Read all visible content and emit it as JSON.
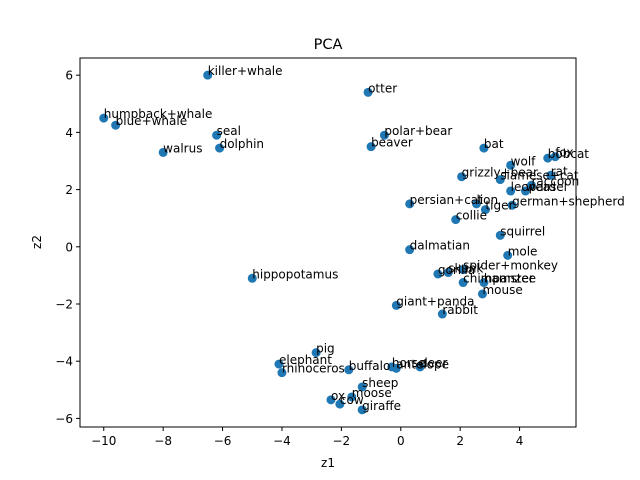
{
  "chart_data": {
    "type": "scatter",
    "title": "PCA",
    "xlabel": "z1",
    "ylabel": "z2",
    "xlim": [
      -10.8,
      5.9
    ],
    "ylim": [
      -6.3,
      6.6
    ],
    "xticks": [
      -10,
      -8,
      -6,
      -4,
      -2,
      0,
      2,
      4
    ],
    "yticks": [
      -6,
      -4,
      -2,
      0,
      2,
      4,
      6
    ],
    "grid": false,
    "marker_color": "#1f77b4",
    "points": [
      {
        "label": "killer+whale",
        "x": -6.5,
        "y": 6.0
      },
      {
        "label": "otter",
        "x": -1.1,
        "y": 5.4
      },
      {
        "label": "humpback+whale",
        "x": -10.0,
        "y": 4.5
      },
      {
        "label": "blue+whale",
        "x": -9.6,
        "y": 4.25
      },
      {
        "label": "seal",
        "x": -6.2,
        "y": 3.9
      },
      {
        "label": "dolphin",
        "x": -6.1,
        "y": 3.45
      },
      {
        "label": "walrus",
        "x": -8.0,
        "y": 3.3
      },
      {
        "label": "polar+bear",
        "x": -0.55,
        "y": 3.9
      },
      {
        "label": "beaver",
        "x": -1.0,
        "y": 3.5
      },
      {
        "label": "bat",
        "x": 2.8,
        "y": 3.45
      },
      {
        "label": "bobcat",
        "x": 4.95,
        "y": 3.1
      },
      {
        "label": "fox",
        "x": 5.2,
        "y": 3.15
      },
      {
        "label": "wolf",
        "x": 3.7,
        "y": 2.85
      },
      {
        "label": "rat",
        "x": 5.05,
        "y": 2.5
      },
      {
        "label": "grizzly+bear",
        "x": 2.05,
        "y": 2.45
      },
      {
        "label": "siamese+cat",
        "x": 3.35,
        "y": 2.35
      },
      {
        "label": "raccoon",
        "x": 4.4,
        "y": 2.15
      },
      {
        "label": "leopard",
        "x": 3.7,
        "y": 1.95
      },
      {
        "label": "weasel",
        "x": 4.2,
        "y": 1.95
      },
      {
        "label": "persian+cat",
        "x": 0.3,
        "y": 1.5
      },
      {
        "label": "lion",
        "x": 2.55,
        "y": 1.5
      },
      {
        "label": "tiger",
        "x": 2.85,
        "y": 1.3
      },
      {
        "label": "german+shepherd",
        "x": 3.75,
        "y": 1.45
      },
      {
        "label": "collie",
        "x": 1.85,
        "y": 0.95
      },
      {
        "label": "squirrel",
        "x": 3.35,
        "y": 0.4
      },
      {
        "label": "dalmatian",
        "x": 0.3,
        "y": -0.1
      },
      {
        "label": "mole",
        "x": 3.6,
        "y": -0.3
      },
      {
        "label": "hippopotamus",
        "x": -5.0,
        "y": -1.1
      },
      {
        "label": "gorilla",
        "x": 1.25,
        "y": -0.95
      },
      {
        "label": "skunk",
        "x": 1.6,
        "y": -0.9
      },
      {
        "label": "spider+monkey",
        "x": 2.1,
        "y": -0.8
      },
      {
        "label": "chimpanzee",
        "x": 2.1,
        "y": -1.25
      },
      {
        "label": "hamster",
        "x": 2.8,
        "y": -1.25
      },
      {
        "label": "mouse",
        "x": 2.75,
        "y": -1.65
      },
      {
        "label": "giant+panda",
        "x": -0.15,
        "y": -2.05
      },
      {
        "label": "rabbit",
        "x": 1.4,
        "y": -2.35
      },
      {
        "label": "pig",
        "x": -2.85,
        "y": -3.7
      },
      {
        "label": "elephant",
        "x": -4.1,
        "y": -4.1
      },
      {
        "label": "rhinoceros",
        "x": -4.0,
        "y": -4.4
      },
      {
        "label": "buffalo",
        "x": -1.75,
        "y": -4.3
      },
      {
        "label": "horse",
        "x": -0.3,
        "y": -4.2
      },
      {
        "label": "antelope",
        "x": -0.15,
        "y": -4.25
      },
      {
        "label": "deer",
        "x": 0.65,
        "y": -4.2
      },
      {
        "label": "sheep",
        "x": -1.3,
        "y": -4.9
      },
      {
        "label": "moose",
        "x": -1.65,
        "y": -5.25
      },
      {
        "label": "ox",
        "x": -2.35,
        "y": -5.35
      },
      {
        "label": "cow",
        "x": -2.05,
        "y": -5.5
      },
      {
        "label": "giraffe",
        "x": -1.3,
        "y": -5.7
      }
    ]
  }
}
